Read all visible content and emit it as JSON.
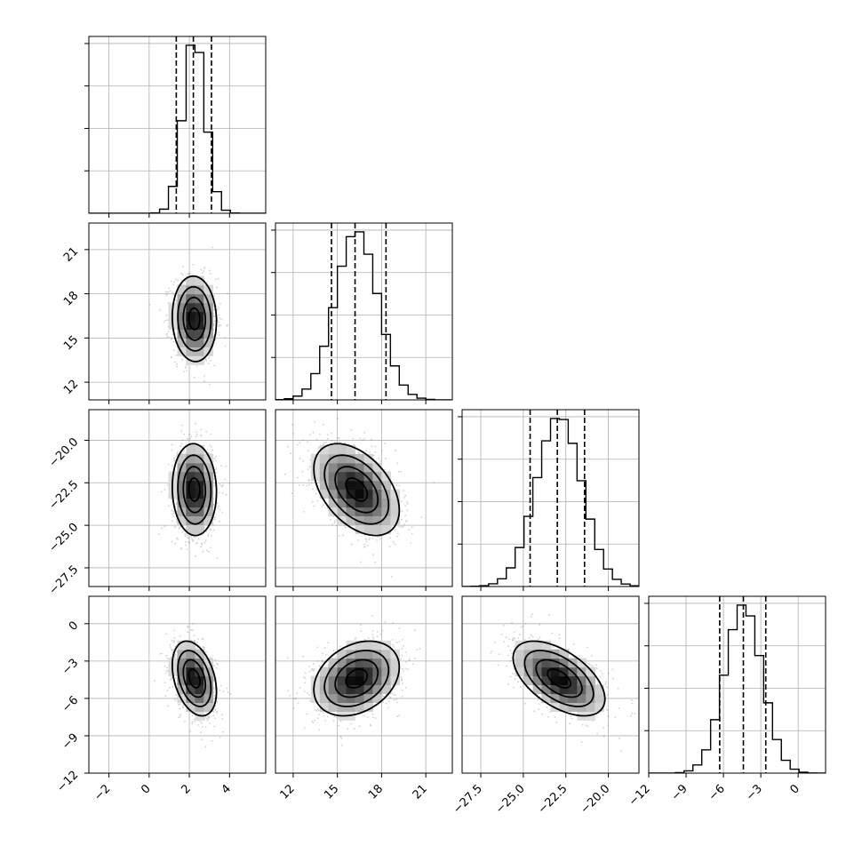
{
  "chart_data": {
    "type": "corner",
    "title": "",
    "variables": [
      {
        "ticks": [
          -2,
          0,
          2,
          4
        ],
        "tick_labels": [
          "−2",
          "0",
          "2",
          "4"
        ],
        "range": [
          -3.0,
          5.8
        ],
        "mean": 2.25,
        "sd": 0.55,
        "quantiles": [
          1.35,
          2.2,
          3.1
        ]
      },
      {
        "ticks": [
          12,
          15,
          18,
          21
        ],
        "tick_labels": [
          "12",
          "15",
          "18",
          "21"
        ],
        "range": [
          10.8,
          22.8
        ],
        "mean": 16.3,
        "sd": 1.45,
        "quantiles": [
          14.6,
          16.2,
          18.3
        ]
      },
      {
        "ticks": [
          -27.5,
          -25.0,
          -22.5,
          -20.0
        ],
        "tick_labels": [
          "−27.5",
          "−25.0",
          "−22.5",
          "−20.0"
        ],
        "range": [
          -28.6,
          -18.2
        ],
        "mean": -22.9,
        "sd": 1.35,
        "quantiles": [
          -24.6,
          -23.0,
          -21.4
        ]
      },
      {
        "ticks": [
          -12,
          -9,
          -6,
          -3,
          0
        ],
        "tick_labels": [
          "−12",
          "−9",
          "−6",
          "−3",
          "0"
        ],
        "range": [
          -12.0,
          2.2
        ],
        "mean": -4.4,
        "sd": 1.5,
        "quantiles": [
          -6.3,
          -4.4,
          -2.6
        ]
      }
    ],
    "correlations": {
      "0-1": -0.05,
      "0-2": -0.05,
      "1-2": -0.45,
      "0-3": -0.35,
      "1-3": 0.3,
      "2-3": -0.55
    },
    "histogram_bins": 20,
    "contour_levels": [
      0.5,
      1.0,
      1.5,
      2.0
    ],
    "grid": true,
    "colors": {
      "ink": "#000000",
      "grid": "#b0b0b0",
      "scatter": "#7a7a7a"
    }
  }
}
